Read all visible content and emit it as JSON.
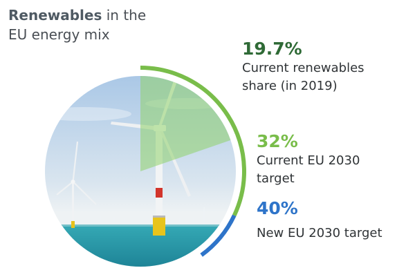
{
  "title": {
    "bold": "Renewables",
    "rest": " in the",
    "line2": "EU energy mix"
  },
  "colors": {
    "stat_1": "#2f6a36",
    "stat_2": "#79bd4a",
    "stat_3": "#2e74c9",
    "sky_top": "#a9c7e6",
    "sea": "#1f8fa1"
  },
  "chart_data": {
    "type": "pie",
    "unit": "%",
    "ylim": [
      0,
      100
    ],
    "series": [
      {
        "value": 19.7,
        "value_label": "19.7%",
        "label_lines": [
          "Current renewables",
          "share (in 2019)"
        ]
      },
      {
        "value": 32,
        "value_label": "32%",
        "label_lines": [
          "Current EU 2030",
          "target"
        ]
      },
      {
        "value": 40,
        "value_label": "40%",
        "label_lines": [
          "New EU 2030 target"
        ]
      }
    ]
  }
}
